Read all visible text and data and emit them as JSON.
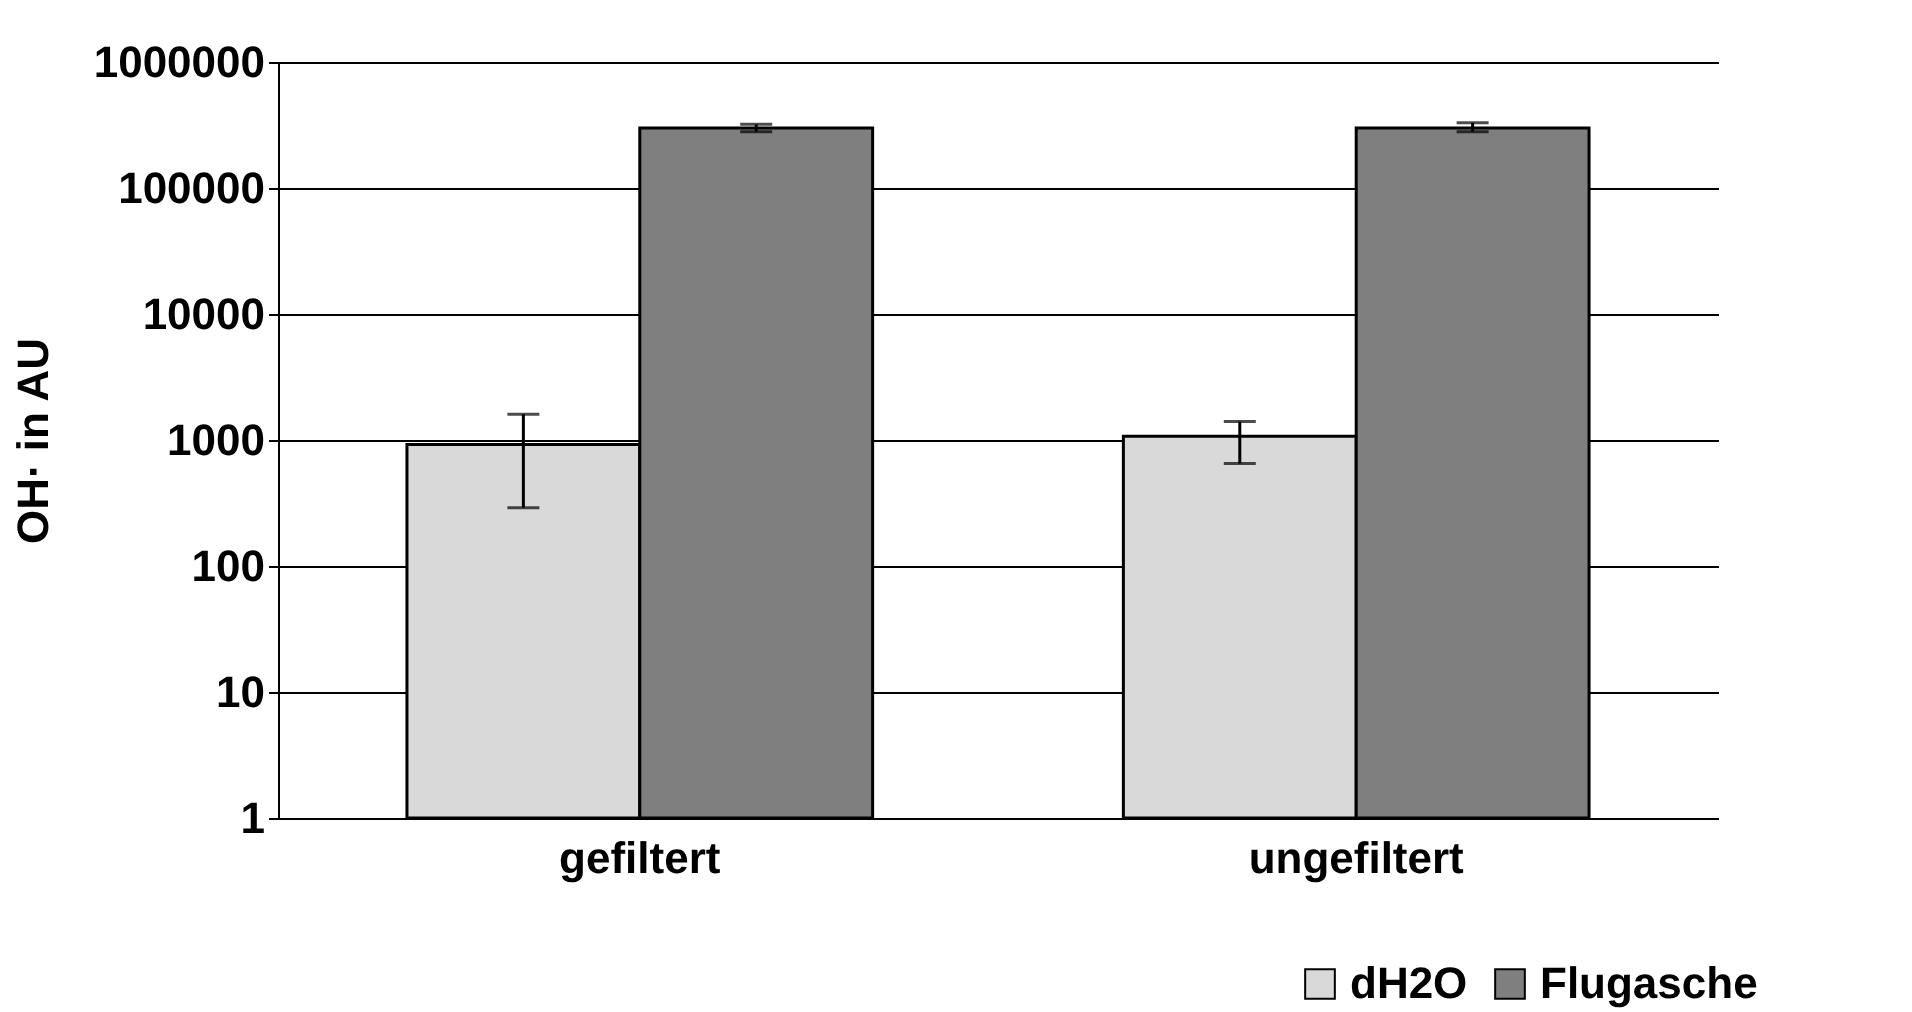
{
  "chart_data": {
    "type": "bar",
    "ylabel": "OH· in AU",
    "categories": [
      "gefiltert",
      "ungefiltert"
    ],
    "series": [
      {
        "name": "dH2O",
        "color": "#d9d9d9",
        "values": [
          920,
          1070
        ],
        "errors": [
          [
            290,
            1600
          ],
          [
            650,
            1400
          ]
        ]
      },
      {
        "name": "Flugasche",
        "color": "#7f7f7f",
        "values": [
          300000,
          300000
        ],
        "errors": [
          [
            280000,
            320000
          ],
          [
            280000,
            330000
          ]
        ]
      }
    ],
    "log": true,
    "ylim": [
      1,
      1000000
    ],
    "yticks": [
      1,
      10,
      100,
      1000,
      10000,
      100000,
      1000000
    ],
    "grid": "y",
    "legend": "bottom right"
  }
}
